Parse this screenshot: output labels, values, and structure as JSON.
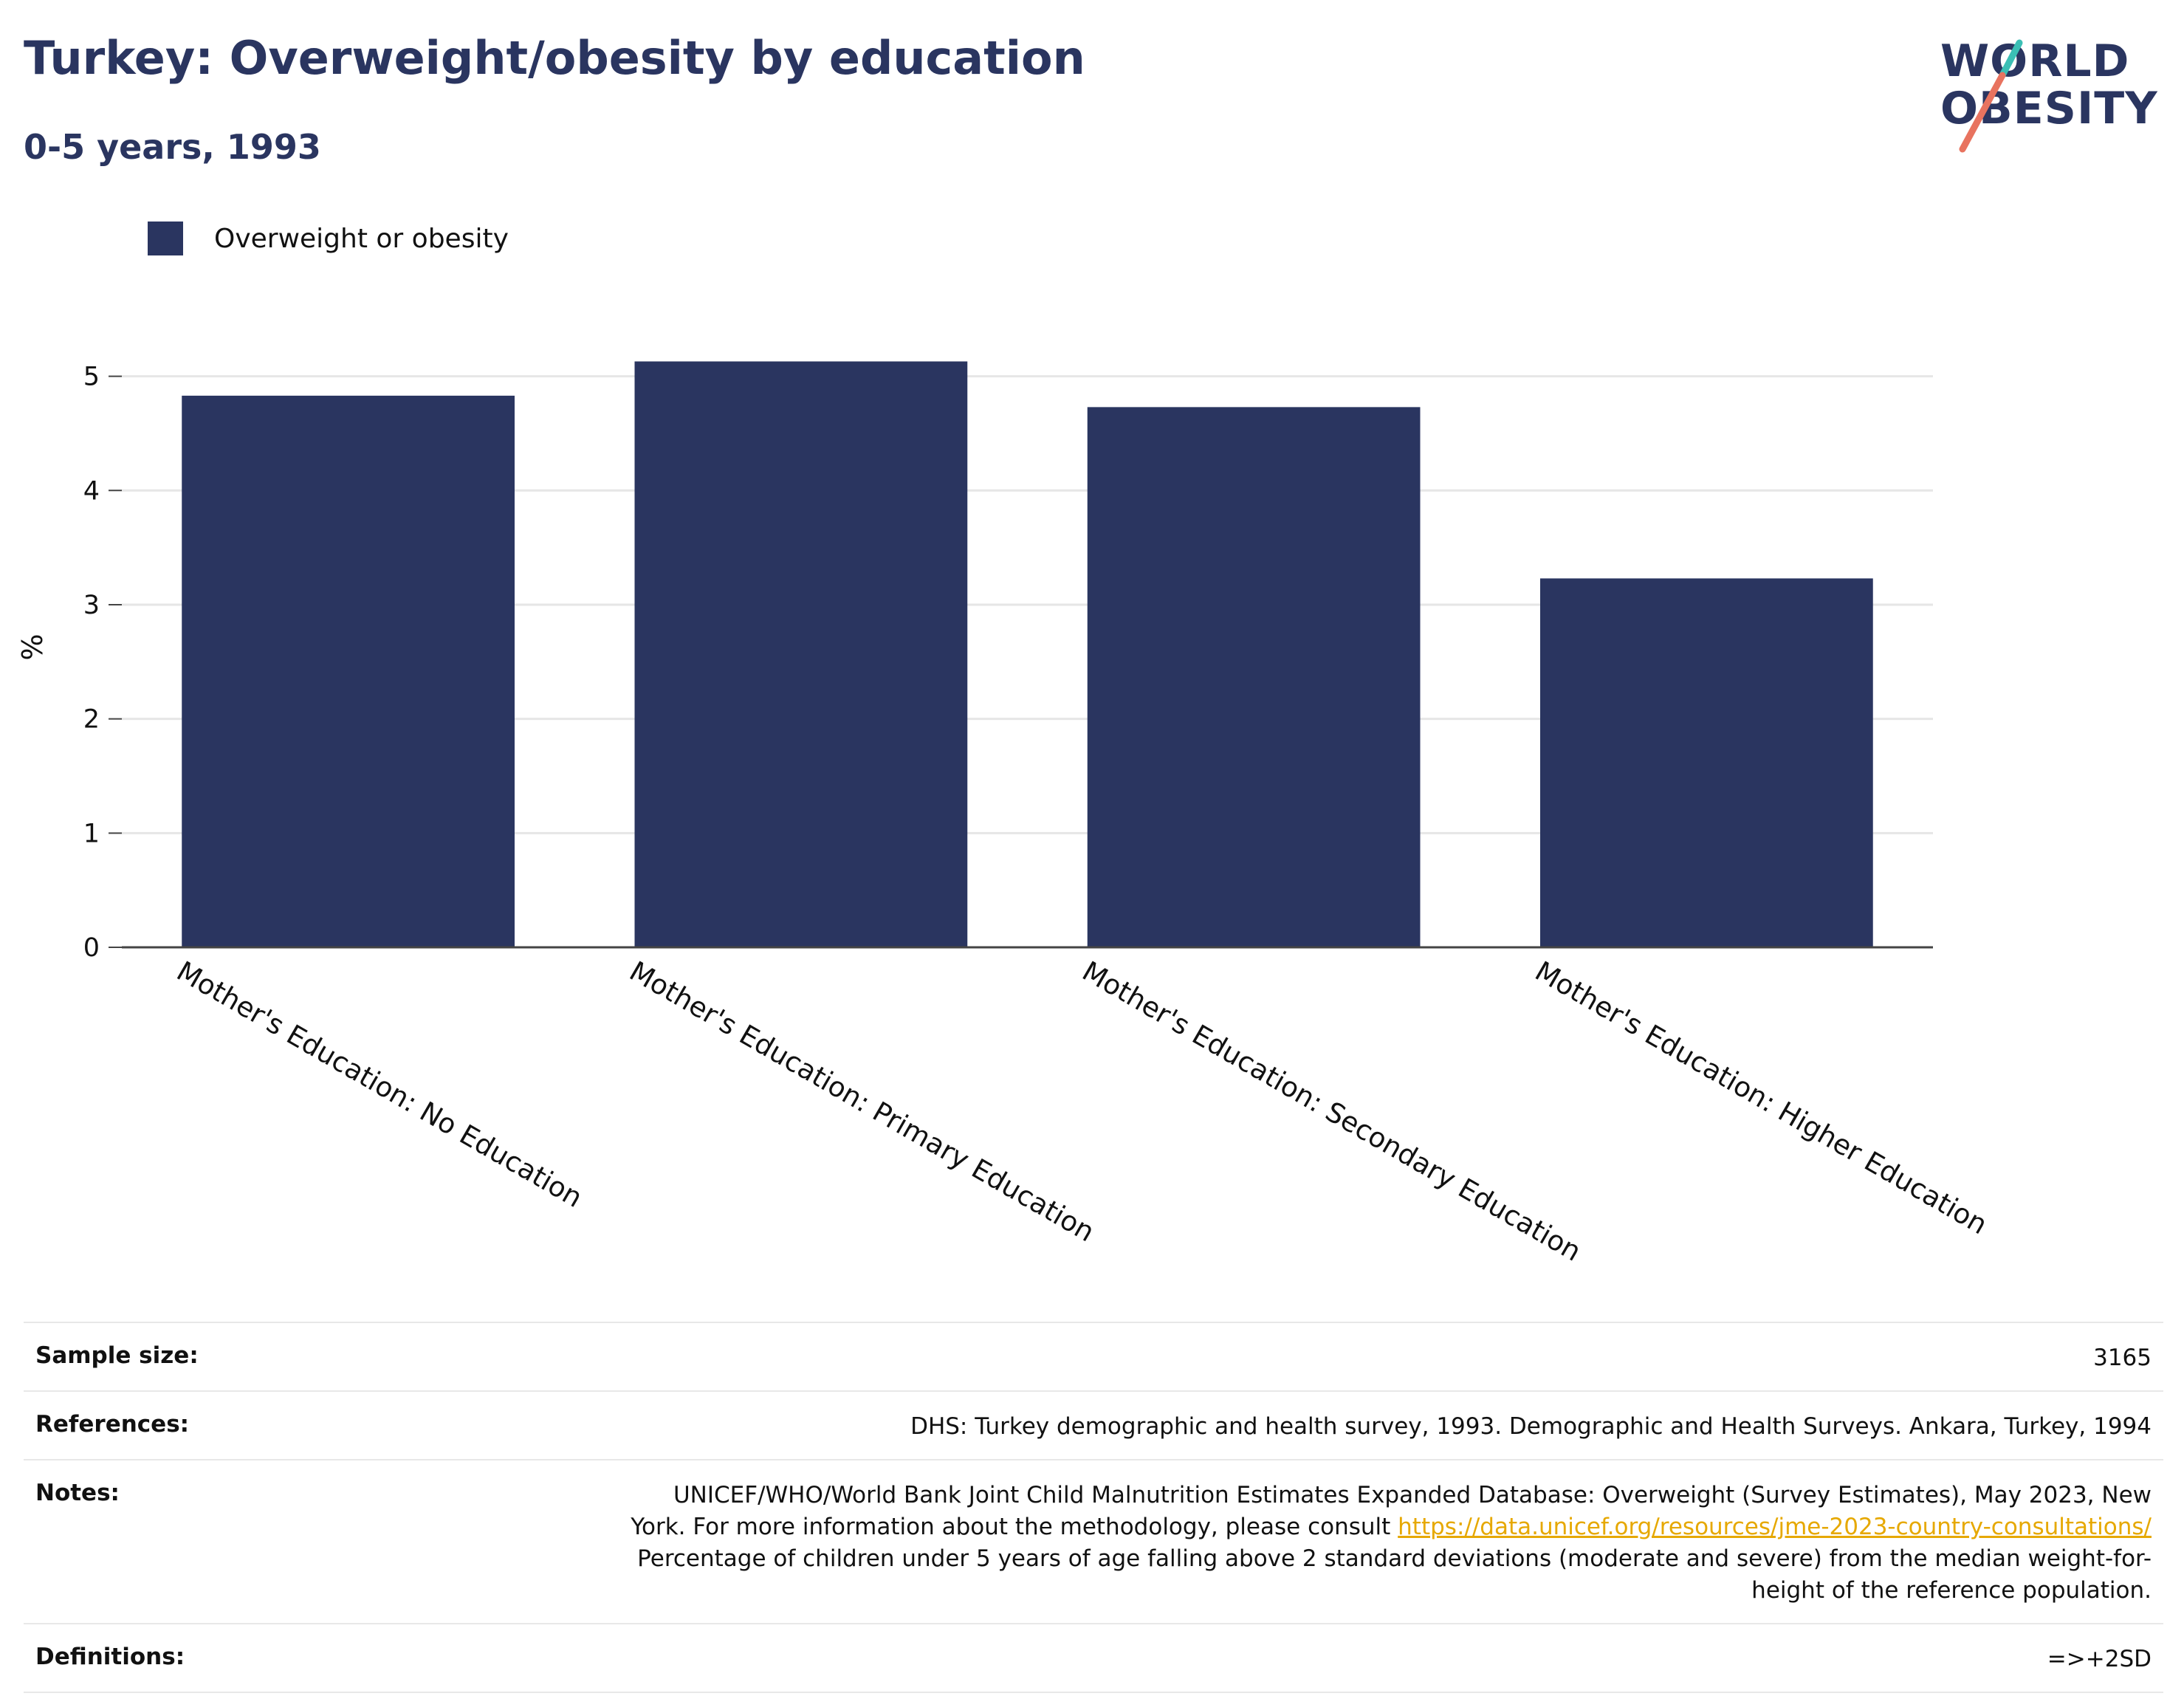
{
  "header": {
    "title": "Turkey: Overweight/obesity by education",
    "subtitle": "0-5 years, 1993"
  },
  "logo": {
    "line1": "WORLD",
    "line2": "OBESITY",
    "colors": {
      "text": "#2a3560",
      "slash_top": "#3bbfb5",
      "slash_bottom": "#e8735f"
    }
  },
  "legend": {
    "label": "Overweight or obesity",
    "color": "#2a3560"
  },
  "chart_data": {
    "type": "bar",
    "title": "Turkey: Overweight/obesity by education",
    "subtitle": "0-5 years, 1993",
    "ylabel": "%",
    "xlabel": "",
    "categories": [
      "Mother's Education: No Education",
      "Mother's Education: Primary Education",
      "Mother's Education: Secondary Education",
      "Mother's Education: Higher Education"
    ],
    "series": [
      {
        "name": "Overweight or obesity",
        "values": [
          4.83,
          5.13,
          4.73,
          3.23
        ],
        "color": "#2a3560"
      }
    ],
    "ylim": [
      0,
      5.45
    ],
    "yticks": [
      0,
      1,
      2,
      3,
      4,
      5
    ],
    "grid": true,
    "legend_position": "top-left"
  },
  "info": {
    "sample_size_label": "Sample size:",
    "sample_size_value": "3165",
    "references_label": "References:",
    "references_value": "DHS: Turkey demographic and health survey, 1993. Demographic and Health Surveys. Ankara, Turkey, 1994",
    "notes_label": "Notes:",
    "notes_text_1": "UNICEF/WHO/World Bank Joint Child Malnutrition Estimates Expanded Database: Overweight (Survey Estimates), May 2023, New York. For more information about the methodology, please consult ",
    "notes_link": "https://data.unicef.org/resources/jme-2023-country-consultations/",
    "notes_text_2": "Percentage of children under 5 years of age falling above 2 standard deviations (moderate and severe) from the median weight-for-height of the reference population.",
    "definitions_label": "Definitions:",
    "definitions_value": "=>+2SD"
  }
}
